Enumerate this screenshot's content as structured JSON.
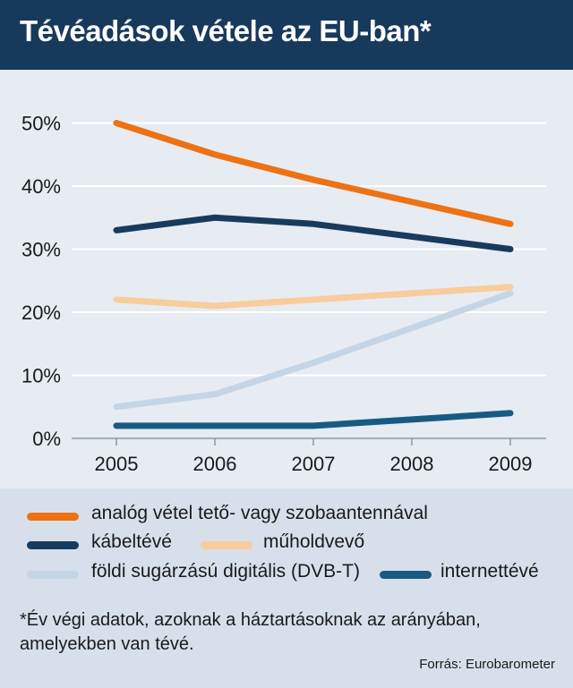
{
  "title": "Tévéadások vétele az EU-ban*",
  "footnote_line1": "*Év végi adatok, azoknak a háztartásoknak az arányában,",
  "footnote_line2": "amelyekben van tévé.",
  "source": "Forrás: Eurobarometer",
  "chart_data": {
    "type": "line",
    "x": [
      "2005",
      "2006",
      "2007",
      "2008",
      "2009"
    ],
    "ylim": [
      0,
      50
    ],
    "yticks": [
      "0%",
      "10%",
      "20%",
      "30%",
      "40%",
      "50%"
    ],
    "grid": true,
    "legend_position": "bottom",
    "series": [
      {
        "name": "analóg vétel tető- vagy szobaantennával",
        "color": "#ee7214",
        "values": [
          50,
          45,
          41,
          37.5,
          34
        ]
      },
      {
        "name": "kábeltévé",
        "color": "#173b5e",
        "values": [
          33,
          35,
          34,
          32,
          30
        ]
      },
      {
        "name": "műholdvevő",
        "color": "#f9cc9c",
        "values": [
          22,
          21,
          22,
          23,
          24
        ]
      },
      {
        "name": "földi sugárzású digitális (DVB-T)",
        "color": "#c4d5e5",
        "values": [
          5,
          7,
          12,
          17.5,
          23
        ]
      },
      {
        "name": "internettévé",
        "color": "#195a82",
        "values": [
          2,
          2,
          2,
          3,
          4
        ]
      }
    ]
  }
}
